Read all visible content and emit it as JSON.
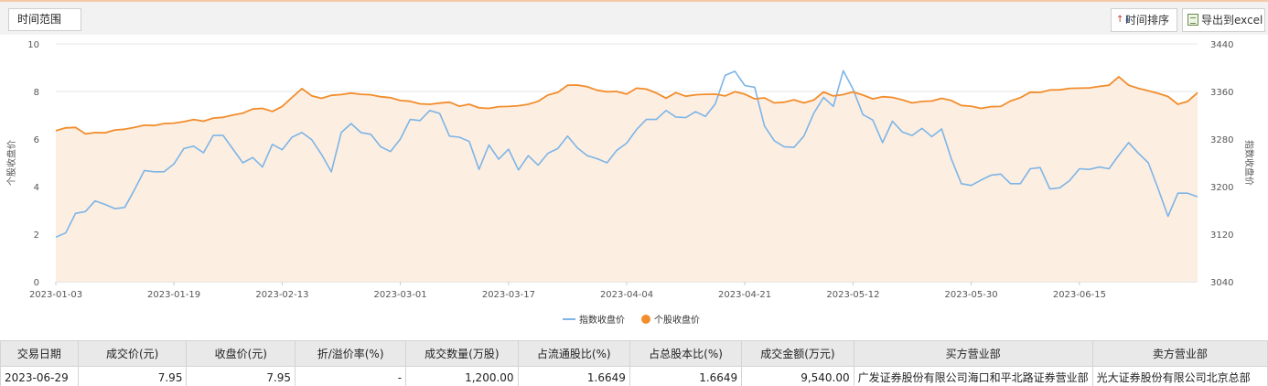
{
  "toolbar": {
    "range_label": "时间范围",
    "sort_label": "时间排序",
    "export_label": "导出到excel"
  },
  "chart_data": {
    "type": "line",
    "xlabel": "",
    "ylabel_left": "个股收盘价",
    "ylabel_right": "指数收盘价",
    "x_ticks": [
      "2023-01-03",
      "2023-01-19",
      "2023-02-13",
      "2023-03-01",
      "2023-03-17",
      "2023-04-04",
      "2023-04-21",
      "2023-05-12",
      "2023-05-30",
      "2023-06-15"
    ],
    "y_left": {
      "min": 0,
      "max": 10,
      "ticks": [
        0,
        2,
        4,
        6,
        8,
        10
      ]
    },
    "y_right": {
      "min": 3040,
      "max": 3440,
      "ticks": [
        3040,
        3120,
        3200,
        3280,
        3360,
        3440
      ]
    },
    "grid": true,
    "legend_position": "bottom",
    "series": [
      {
        "name": "指数收盘价",
        "axis": "right",
        "color": "#7cb5e6",
        "marker": "line",
        "values": [
          3115,
          3122,
          3155,
          3158,
          3176,
          3170,
          3163,
          3165,
          3195,
          3227,
          3225,
          3225,
          3238,
          3264,
          3268,
          3257,
          3286,
          3286,
          3263,
          3240,
          3249,
          3233,
          3271,
          3262,
          3283,
          3291,
          3279,
          3254,
          3225,
          3291,
          3306,
          3291,
          3288,
          3267,
          3259,
          3280,
          3313,
          3311,
          3328,
          3323,
          3285,
          3283,
          3276,
          3229,
          3270,
          3246,
          3263,
          3228,
          3252,
          3236,
          3256,
          3264,
          3285,
          3265,
          3252,
          3247,
          3240,
          3261,
          3273,
          3296,
          3313,
          3313,
          3328,
          3317,
          3316,
          3326,
          3318,
          3339,
          3387,
          3394,
          3370,
          3367,
          3302,
          3277,
          3267,
          3266,
          3285,
          3323,
          3350,
          3335,
          3395,
          3364,
          3321,
          3312,
          3274,
          3310,
          3292,
          3286,
          3298,
          3284,
          3297,
          3246,
          3205,
          3202,
          3211,
          3219,
          3221,
          3205,
          3205,
          3230,
          3232,
          3196,
          3198,
          3210,
          3230,
          3229,
          3233,
          3230,
          3253,
          3274,
          3256,
          3240,
          3196,
          3150,
          3189,
          3189,
          3183
        ]
      },
      {
        "name": "个股收盘价",
        "axis": "left",
        "color": "#f28d2c",
        "marker": "dot",
        "values": [
          6.35,
          6.47,
          6.49,
          6.22,
          6.27,
          6.26,
          6.38,
          6.41,
          6.49,
          6.58,
          6.57,
          6.65,
          6.67,
          6.73,
          6.82,
          6.75,
          6.88,
          6.91,
          7.01,
          7.09,
          7.26,
          7.29,
          7.16,
          7.37,
          7.75,
          8.12,
          7.82,
          7.71,
          7.84,
          7.87,
          7.93,
          7.88,
          7.86,
          7.78,
          7.74,
          7.62,
          7.59,
          7.48,
          7.46,
          7.51,
          7.55,
          7.38,
          7.46,
          7.31,
          7.29,
          7.36,
          7.37,
          7.4,
          7.46,
          7.59,
          7.85,
          7.96,
          8.26,
          8.27,
          8.2,
          8.05,
          7.99,
          8.0,
          7.89,
          8.14,
          8.1,
          7.94,
          7.72,
          7.95,
          7.8,
          7.86,
          7.88,
          7.89,
          7.81,
          7.99,
          7.89,
          7.69,
          7.73,
          7.52,
          7.55,
          7.65,
          7.52,
          7.64,
          7.98,
          7.81,
          7.87,
          7.98,
          7.85,
          7.69,
          7.78,
          7.75,
          7.65,
          7.52,
          7.58,
          7.6,
          7.71,
          7.62,
          7.41,
          7.38,
          7.29,
          7.36,
          7.37,
          7.6,
          7.74,
          7.97,
          7.96,
          8.06,
          8.07,
          8.13,
          8.14,
          8.15,
          8.21,
          8.26,
          8.62,
          8.26,
          8.13,
          8.03,
          7.92,
          7.79,
          7.46,
          7.58,
          7.95
        ]
      }
    ]
  },
  "table": {
    "columns": [
      "交易日期",
      "成交价(元)",
      "收盘价(元)",
      "折/溢价率(%)",
      "成交数量(万股)",
      "占流通股比(%)",
      "占总股本比(%)",
      "成交金额(万元)",
      "买方营业部",
      "卖方营业部"
    ],
    "rows": [
      [
        "2023-06-29",
        "7.95",
        "7.95",
        "-",
        "1,200.00",
        "1.6649",
        "1.6649",
        "9,540.00",
        "广发证券股份有限公司海口和平北路证券营业部",
        "光大证券股份有限公司北京总部"
      ]
    ]
  }
}
